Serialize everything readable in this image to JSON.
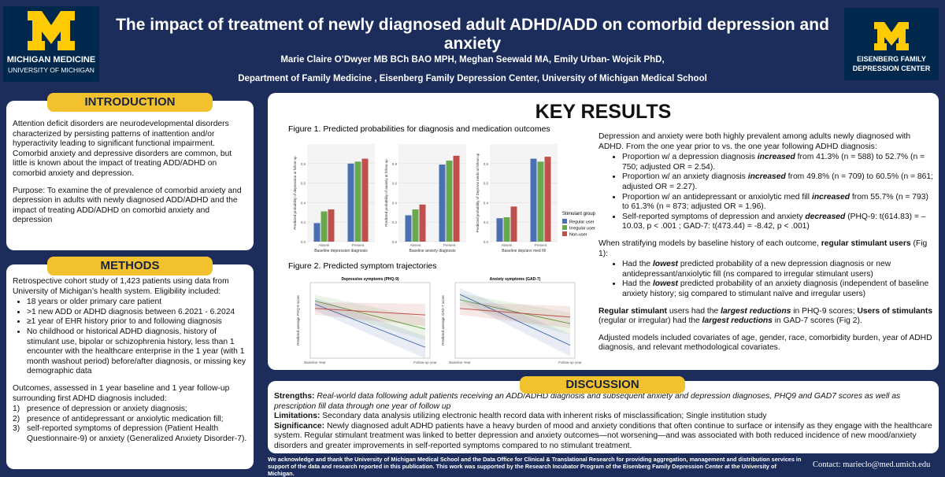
{
  "header": {
    "logo_left": {
      "line1": "MICHIGAN MEDICINE",
      "line2": "UNIVERSITY OF MICHIGAN"
    },
    "title": "The impact of treatment of newly diagnosed adult ADHD/ADD on comorbid depression and anxiety",
    "authors": "Marie Claire O’Dwyer MB BCh BAO MPH, Meghan Seewald MA, Emily Urban- Wojcik PhD,",
    "department": "Department of Family Medicine , Eisenberg Family Depression Center, University of Michigan Medical School",
    "logo_right": {
      "line1": "EISENBERG FAMILY",
      "line2": "DEPRESSION CENTER"
    }
  },
  "introduction": {
    "heading": "INTRODUCTION",
    "paragraphs": [
      "Attention deficit disorders are neurodevelopmental disorders characterized by persisting patterns of inattention and/or hyperactivity leading to significant functional impairment. Comorbid anxiety and depressive disorders are common, but little is known about the impact of treating ADD/ADHD on comorbid anxiety and depression.",
      "Purpose: To examine the of prevalence of comorbid anxiety and depression in adults with newly diagnosed ADD/ADHD and the impact of treating ADD/ADHD on comorbid anxiety and depression"
    ]
  },
  "methods": {
    "heading": "METHODS",
    "intro": "Retrospective cohort study of 1,423 patients using data from University of Michigan’s health system. Eligibility included:",
    "criteria": [
      "18 years or older primary care patient",
      ">1 new ADD or ADHD diagnosis between 6.2021 - 6.2024",
      "≥1 year of EHR history prior to and following diagnosis",
      "No childhood or historical ADHD diagnosis, history of stimulant use, bipolar or schizophrenia history, less than 1 encounter with the healthcare enterprise in the 1 year (with 1 month washout period) before/after diagnosis, or missing key demographic data"
    ],
    "outcomes_intro": "Outcomes, assessed in 1 year baseline and 1 year follow-up surrounding first ADHD diagnosis included:",
    "outcomes": [
      {
        "num": "1)",
        "text": "presence of depression or anxiety diagnosis;"
      },
      {
        "num": "2)",
        "text": "presence of antidepressant or anxiolytic medication fill;"
      },
      {
        "num": "3)",
        "text": "self-reported symptoms of depression (Patient Health Questionnaire-9) or anxiety (Generalized Anxiety Disorder-7)."
      }
    ]
  },
  "key_results": {
    "heading": "KEY RESULTS",
    "figure1": {
      "caption": "Figure 1. Predicted probabilities for diagnosis and medication outcomes",
      "legend_title": "Stimulant group",
      "series": [
        {
          "name": "Regular user",
          "color": "#4a6fb5"
        },
        {
          "name": "Irregular user",
          "color": "#6aa84f"
        },
        {
          "name": "Non-user",
          "color": "#c0504d"
        }
      ],
      "panels": [
        {
          "type": "bar",
          "y_label": "Predicted probability of depression at follow-up",
          "x_label": "Baseline depression diagnosis",
          "categories": [
            "Absent",
            "Present"
          ],
          "values": [
            [
              0.19,
              0.31,
              0.33
            ],
            [
              0.8,
              0.82,
              0.85
            ]
          ],
          "ylim": [
            0,
            1
          ],
          "yticks": [
            {
              "value": 0,
              "label": "0.0"
            },
            0.2,
            0.4,
            0.6,
            0.8
          ]
        },
        {
          "type": "bar",
          "y_label": "Predicted probability of anxiety at follow-up",
          "x_label": "Baseline anxiety diagnosis",
          "categories": [
            "Absent",
            "Present"
          ],
          "values": [
            [
              0.27,
              0.33,
              0.38
            ],
            [
              0.79,
              0.83,
              0.88
            ]
          ],
          "ylim": [
            0,
            1
          ],
          "yticks": [
            {
              "value": 0,
              "label": "0.0"
            },
            0.2,
            0.4,
            0.6,
            0.8
          ]
        },
        {
          "type": "bar",
          "y_label": "Predicted probability of Dep/Anx meds at follow-up",
          "x_label": "Baseline dep/anx med fill",
          "categories": [
            "Absent",
            "Present"
          ],
          "values": [
            [
              0.24,
              0.25,
              0.36
            ],
            [
              0.85,
              0.82,
              0.87
            ]
          ],
          "ylim": [
            0,
            1
          ],
          "yticks": [
            {
              "value": 0,
              "label": "0.0"
            },
            0.2,
            0.4,
            0.6,
            0.8
          ]
        }
      ]
    },
    "figure2": {
      "caption": "Figure 2. Predicted symptom trajectories",
      "panels": [
        {
          "type": "line",
          "title": "Depressive symptoms (PHQ-9)",
          "y_label": "Predicted average PHQ-9 score",
          "categories": [
            "Baseline Year",
            "Follow-up year"
          ],
          "ylim": [
            4,
            11
          ],
          "series": [
            {
              "color": "#6aa84f",
              "values": [
                9.3,
                6.7
              ]
            },
            {
              "color": "#4a6fb5",
              "values": [
                9.0,
                5.0
              ]
            },
            {
              "color": "#c0504d",
              "values": [
                8.6,
                8.0
              ]
            }
          ]
        },
        {
          "type": "line",
          "title": "Anxiety symptoms (GAD-7)",
          "y_label": "Predicted average GAD-7 score",
          "categories": [
            "Baseline Year",
            "Follow-up year"
          ],
          "ylim": [
            3,
            10
          ],
          "series": [
            {
              "color": "#6aa84f",
              "values": [
                8.4,
                6.2
              ]
            },
            {
              "color": "#4a6fb5",
              "values": [
                8.9,
                4.2
              ]
            },
            {
              "color": "#c0504d",
              "values": [
                7.6,
                6.8
              ]
            }
          ]
        }
      ]
    },
    "text": {
      "intro": "Depression and anxiety were both highly prevalent among adults newly diagnosed with ADHD. From the one year prior to vs. the one year following ADHD diagnosis:",
      "bullets": [
        [
          "Proportion w/ a depression diagnosis ",
          "increased",
          " from 41.3% (n = 588) to 52.7% (n = 750; adjusted OR = 2.54)."
        ],
        [
          "Proportion w/ an anxiety diagnosis ",
          "increased",
          " from 49.8% (n = 709) to 60.5% (n = 861; adjusted OR = 2.27)."
        ],
        [
          "Proportion w/ an antidepressant or anxiolytic med fill ",
          "increased",
          " from 55.7% (n = 793) to 61.3% (n = 873; adjusted OR = 1.96)."
        ],
        [
          "Self-reported symptoms of depression and anxiety ",
          "decreased",
          " (PHQ-9: t(614.83) = –10.03, p < .001 ; GAD-7: t(473.44) = -8.42, p < .001)"
        ]
      ],
      "stratify": [
        "When stratifying models by baseline history of each outcome, ",
        "regular stimulant users",
        " (Fig 1):"
      ],
      "sub_bullets": [
        [
          "Had the ",
          "lowest",
          " predicted probability of a new depression diagnosis or new antidepressant/anxiolytic fill (ns compared to irregular stimulant users)"
        ],
        [
          "Had the ",
          "lowest",
          " predicted probability of an anxiety diagnosis (independent of baseline anxiety history; sig compared to stimulant naïve and irregular users)"
        ]
      ],
      "reductions": [
        "Regular stimulant",
        " users had the ",
        "largest reductions",
        " in PHQ-9 scores; ",
        "Users of stimulants",
        " (regular or irregular) had the ",
        "largest reductions",
        " in GAD-7 scores (Fig 2)."
      ],
      "adjusted": "Adjusted models included covariates of age, gender, race, comorbidity burden, year of ADHD diagnosis, and relevant methodological covariates."
    }
  },
  "discussion": {
    "heading": "DISCUSSION",
    "items": [
      {
        "label": "Strengths:",
        "text": " Real-world data following adult patients receiving an ADD/ADHD diagnosis and subsequent anxiety and depression diagnoses, PHQ9 and GAD7 scores as well as prescription fill data through one year of follow up"
      },
      {
        "label": "Limitations:",
        "text": " Secondary data analysis utilizing electronic health record data with inherent risks of misclassification; Single institution study"
      },
      {
        "label": "Significance:",
        "text": " Newly diagnosed adult ADHD patients have a heavy burden of mood and anxiety conditions that often continue to surface or intensify as they engage with the healthcare system. Regular stimulant treatment was linked to better depression and anxiety outcomes—not worsening—and was associated with both reduced incidence of new mood/anxiety disorders and greater improvements in self-reported symptoms compared to no stimulant treatment."
      }
    ]
  },
  "footer": {
    "acknowledgement": "We acknowledge and thank the University of Michigan Medical School and the Data Office for Clinical & Translational Research for providing aggregation, management and distribution services in support of the data and research reported in this publication. This work was supported by the Research Incubator Program of the Eisenberg Family Depression Center at the University of Michigan.",
    "contact": "Contact: marieclo@med.umich.edu"
  }
}
